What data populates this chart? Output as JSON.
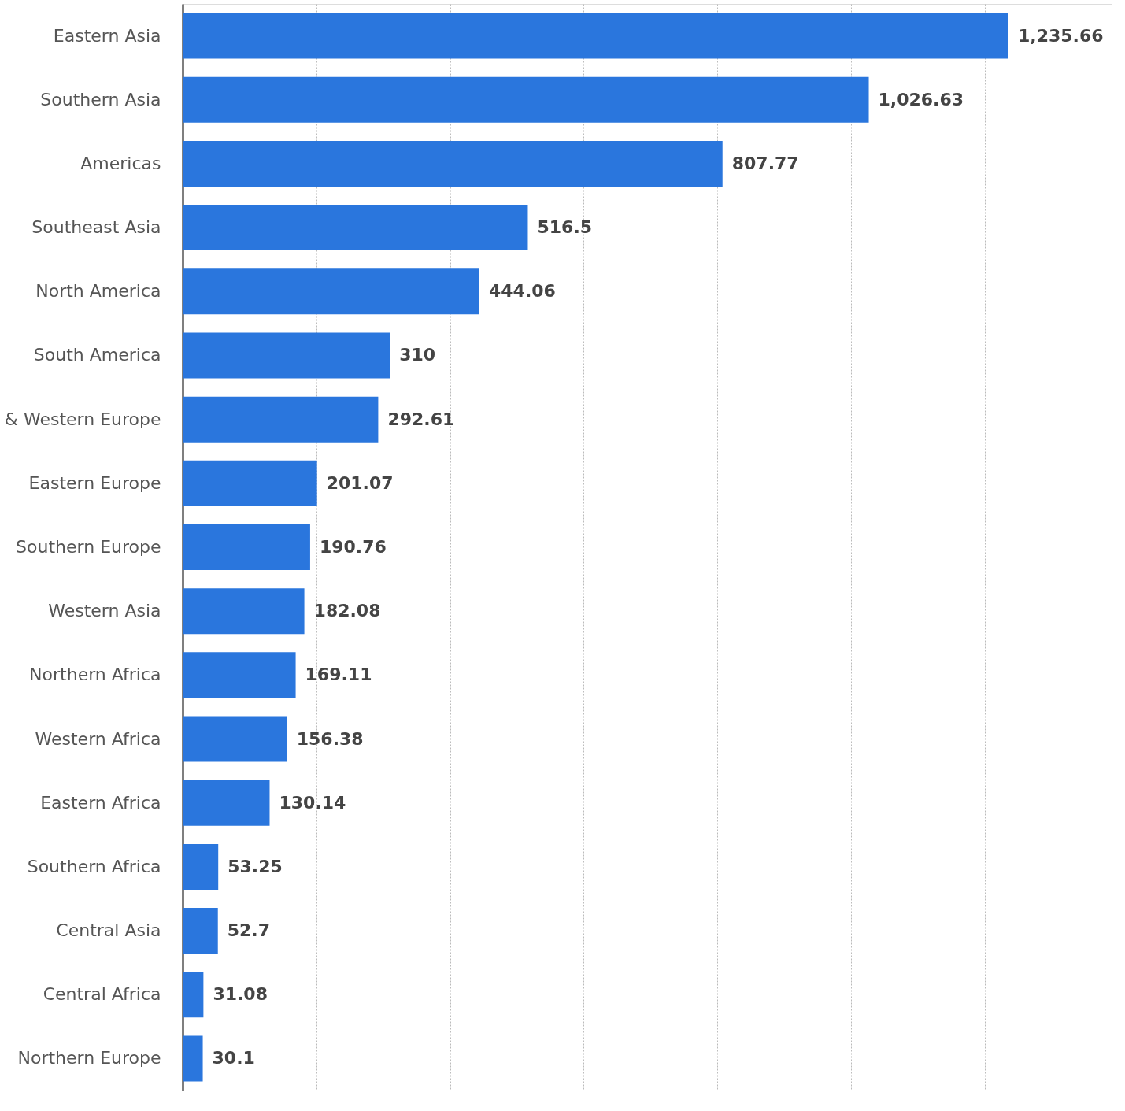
{
  "chart_data": {
    "type": "bar",
    "orientation": "horizontal",
    "categories": [
      "Eastern Asia",
      "Southern Asia",
      "Americas",
      "Southeast Asia",
      "North America",
      "South America",
      "& Western Europe",
      "Eastern Europe",
      "Southern Europe",
      "Western Asia",
      "Northern Africa",
      "Western Africa",
      "Eastern Africa",
      "Southern Africa",
      "Central Asia",
      "Central Africa",
      "Northern Europe"
    ],
    "values": [
      1235.66,
      1026.63,
      807.77,
      516.5,
      444.06,
      310,
      292.61,
      201.07,
      190.76,
      182.08,
      169.11,
      156.38,
      130.14,
      53.25,
      52.7,
      31.08,
      30.1
    ],
    "value_labels": [
      "1,235.66",
      "1,026.63",
      "807.77",
      "516.5",
      "444.06",
      "310",
      "292.61",
      "201.07",
      "190.76",
      "182.08",
      "169.11",
      "156.38",
      "130.14",
      "53.25",
      "52.7",
      "31.08",
      "30.1"
    ],
    "color": "#2a76dd",
    "xlim": [
      0,
      1390
    ],
    "xticks": [
      {
        "value": 0,
        "label": null
      },
      {
        "value": 200,
        "label": null
      },
      {
        "value": 400,
        "label": null
      },
      {
        "value": 600,
        "label": null
      },
      {
        "value": 800,
        "label": null
      },
      {
        "value": 1000,
        "label": null
      },
      {
        "value": 1200,
        "label": null
      }
    ],
    "grid": "x",
    "tick_labels": "y"
  }
}
